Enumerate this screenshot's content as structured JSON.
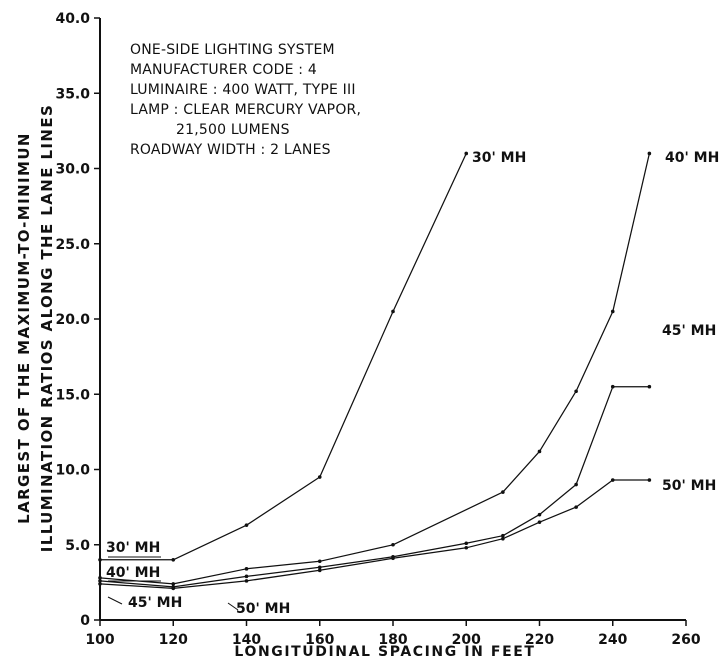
{
  "chart_data": {
    "type": "line",
    "title": "",
    "notes": [
      "ONE-SIDE LIGHTING SYSTEM",
      "MANUFACTURER CODE : 4",
      "LUMINAIRE : 400 WATT, TYPE III",
      "LAMP : CLEAR MERCURY VAPOR,",
      "21,500 LUMENS",
      "ROADWAY WIDTH : 2 LANES"
    ],
    "xlabel": "LONGITUDINAL SPACING IN FEET",
    "ylabel_lines": [
      "LARGEST OF THE MAXIMUM-TO-MINIMUN",
      "ILLUMINATION RATIOS ALONG THE LANE LINES"
    ],
    "xlim": [
      100,
      260
    ],
    "ylim": [
      0,
      40
    ],
    "xticks": [
      "100",
      "120",
      "140",
      "160",
      "180",
      "200",
      "220",
      "240",
      "260"
    ],
    "yticks": [
      "0",
      "5.0",
      "10.0",
      "15.0",
      "20.0",
      "25.0",
      "30.0",
      "35.0",
      "40.0"
    ],
    "grid": false,
    "line_color": "#111111",
    "series": [
      {
        "name": "30' MH",
        "x": [
          100,
          120,
          140,
          160,
          180,
          200
        ],
        "y": [
          4.0,
          4.0,
          6.3,
          9.5,
          20.5,
          31.0
        ]
      },
      {
        "name": "40' MH",
        "x": [
          100,
          120,
          140,
          160,
          180,
          210,
          220,
          230,
          240,
          250
        ],
        "y": [
          2.8,
          2.4,
          3.4,
          3.9,
          5.0,
          8.5,
          11.2,
          15.2,
          20.5,
          31.0
        ]
      },
      {
        "name": "45' MH",
        "x": [
          100,
          120,
          140,
          160,
          180,
          200,
          210,
          220,
          230,
          240,
          250
        ],
        "y": [
          2.6,
          2.2,
          2.9,
          3.5,
          4.2,
          5.1,
          5.6,
          7.0,
          9.0,
          15.5,
          15.5
        ]
      },
      {
        "name": "50' MH",
        "x": [
          100,
          120,
          140,
          160,
          180,
          200,
          210,
          220,
          230,
          240,
          250
        ],
        "y": [
          2.4,
          2.1,
          2.6,
          3.3,
          4.1,
          4.8,
          5.4,
          6.5,
          7.5,
          9.3,
          9.3
        ]
      }
    ]
  }
}
